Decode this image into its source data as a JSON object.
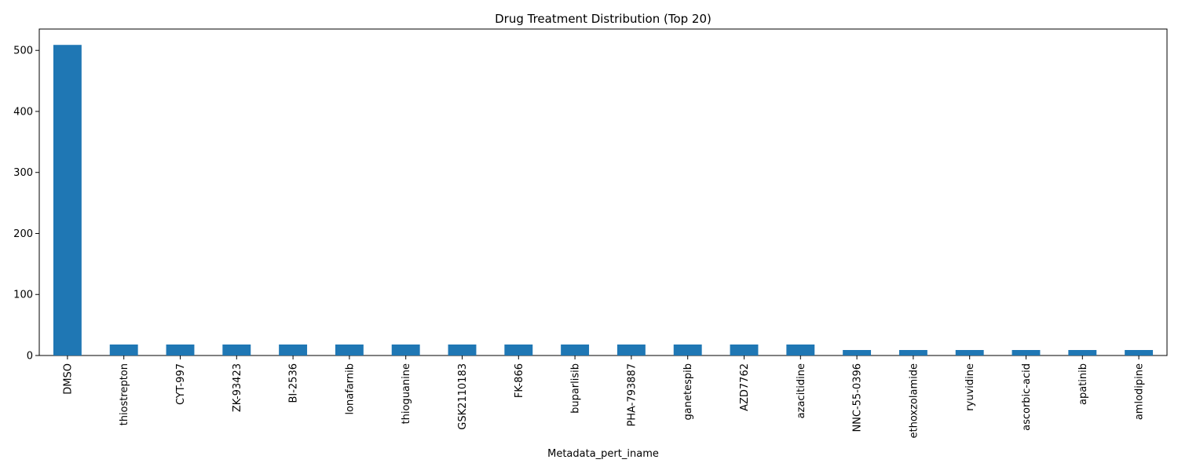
{
  "chart_data": {
    "type": "bar",
    "title": "Drug Treatment Distribution (Top 20)",
    "xlabel": "Metadata_pert_iname",
    "ylabel": "",
    "ylim": [
      0,
      535
    ],
    "yticks": [
      0,
      100,
      200,
      300,
      400,
      500
    ],
    "grid": false,
    "legend": false,
    "bar_color": "#1f77b4",
    "categories": [
      "DMSO",
      "thiostrepton",
      "CYT-997",
      "ZK-93423",
      "BI-2536",
      "lonafarnib",
      "thioguanine",
      "GSK2110183",
      "FK-866",
      "buparlisib",
      "PHA-793887",
      "ganetespib",
      "AZD7762",
      "azacitidine",
      "NNC-55-0396",
      "ethoxzolamide",
      "ryuvidine",
      "ascorbic-acid",
      "apatinib",
      "amlodipine"
    ],
    "values": [
      509,
      18,
      18,
      18,
      18,
      18,
      18,
      18,
      18,
      18,
      18,
      18,
      18,
      18,
      9,
      9,
      9,
      9,
      9,
      9
    ]
  }
}
